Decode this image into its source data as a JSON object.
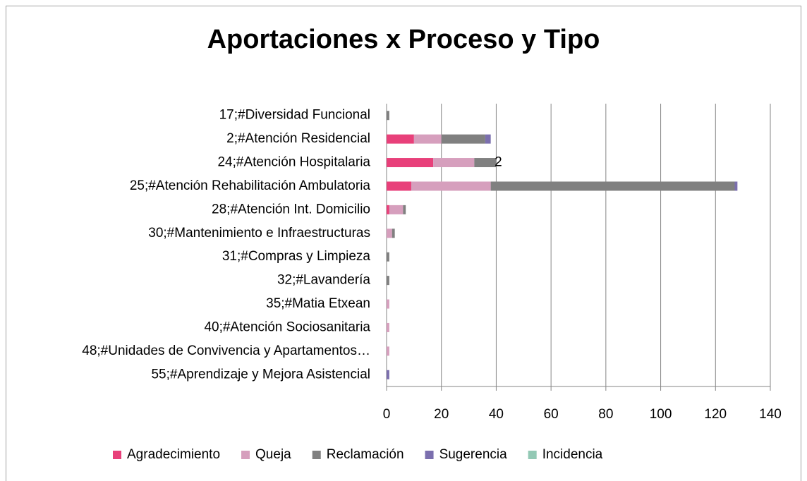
{
  "chart_data": {
    "type": "stacked_bar_horizontal",
    "title": "Aportaciones x Proceso y Tipo",
    "categories": [
      "17;#Diversidad Funcional",
      "2;#Atención Residencial",
      "24;#Atención Hospitalaria",
      "25;#Atención Rehabilitación Ambulatoria",
      "28;#Atención Int. Domicilio",
      "30;#Mantenimiento e Infraestructuras",
      "31;#Compras y Limpieza",
      "32;#Lavandería",
      "35;#Matia Etxean",
      "40;#Atención Sociosanitaria",
      "48;#Unidades de Convivencia y Apartamentos…",
      "55;#Aprendizaje y Mejora Asistencial"
    ],
    "series": [
      {
        "name": "Agradecimiento",
        "color": "#e8407a",
        "values": [
          0,
          10,
          17,
          9,
          1,
          0,
          0,
          0,
          0,
          0,
          0,
          0
        ]
      },
      {
        "name": "Queja",
        "color": "#d69fbd",
        "values": [
          0,
          10,
          15,
          29,
          5,
          2,
          0,
          0,
          1,
          1,
          1,
          0
        ]
      },
      {
        "name": "Reclamación",
        "color": "#808080",
        "values": [
          1,
          16,
          8,
          89,
          1,
          1,
          1,
          1,
          0,
          0,
          0,
          0
        ]
      },
      {
        "name": "Sugerencia",
        "color": "#7b6fae",
        "values": [
          0,
          2,
          0,
          1,
          0,
          0,
          0,
          0,
          0,
          0,
          0,
          1
        ]
      },
      {
        "name": "Incidencia",
        "color": "#93c9b5",
        "values": [
          0,
          0,
          0,
          0,
          0,
          0,
          0,
          0,
          0,
          0,
          0,
          0
        ]
      }
    ],
    "annotations": [
      {
        "text": "2",
        "category": "24;#Atención Hospitalaria"
      }
    ],
    "xlim": [
      0,
      140
    ],
    "xticks": [
      0,
      20,
      40,
      60,
      80,
      100,
      120,
      140
    ],
    "grid": true,
    "legend": "bottom"
  }
}
